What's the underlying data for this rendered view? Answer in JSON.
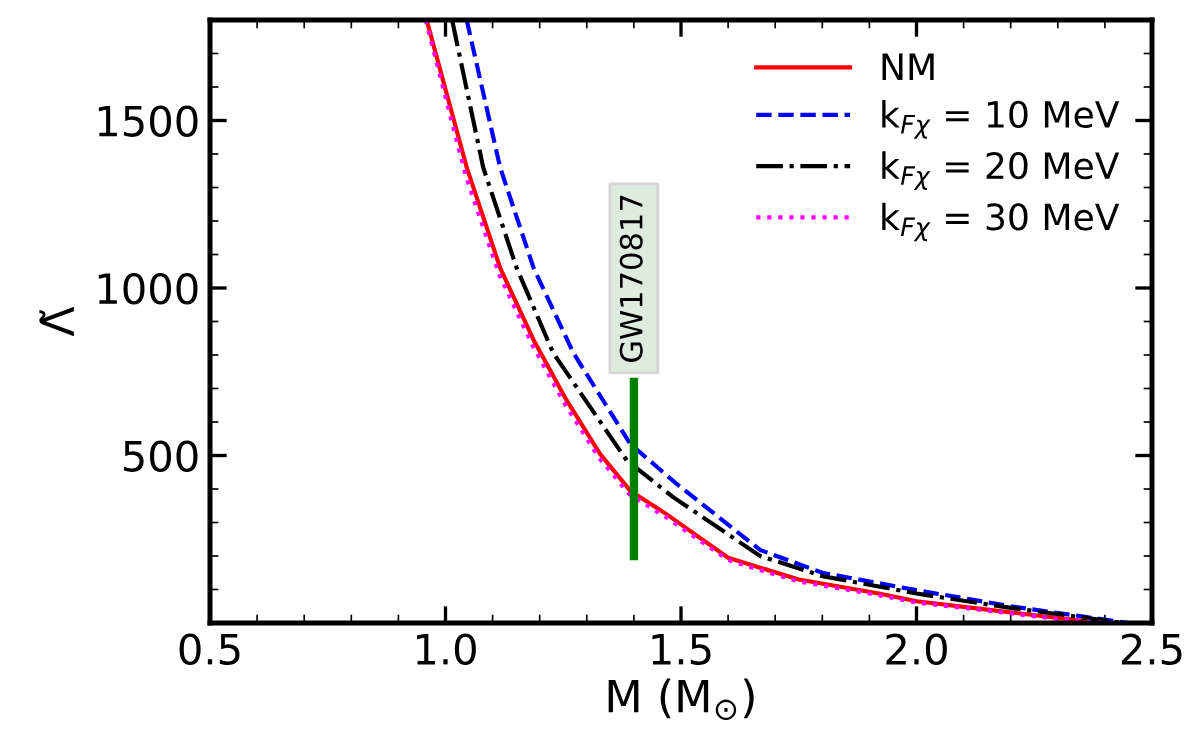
{
  "chart_data": {
    "type": "line",
    "xlabel": "M (M$_{⊙}$)",
    "ylabel": "Λ̃",
    "xlim": [
      0.5,
      2.5
    ],
    "ylim": [
      0,
      1800
    ],
    "xticks": [
      {
        "value": 0.5,
        "label": "0.5"
      },
      {
        "value": 1.0,
        "label": "1.0"
      },
      {
        "value": 1.5,
        "label": "1.5"
      },
      {
        "value": 2.0,
        "label": "2.0"
      },
      {
        "value": 2.5,
        "label": "2.5"
      }
    ],
    "yticks": [
      500,
      1000,
      1500
    ],
    "grid": false,
    "legend": "top right",
    "marker": "none",
    "series": [
      {
        "name": "NM",
        "color": "#ff0000",
        "line_style": "solid",
        "x": [
          0.96,
          1.045,
          1.116,
          1.187,
          1.257,
          1.328,
          1.392,
          1.469,
          1.6,
          1.668,
          1.75,
          1.92,
          2.0,
          2.15,
          2.3,
          2.36,
          2.42
        ],
        "values": [
          1800,
          1360,
          1060,
          845,
          665,
          505,
          395,
          325,
          195,
          165,
          130,
          88,
          65,
          40,
          15,
          6,
          0
        ]
      },
      {
        "name": "k$_{Fχ}$ = 10 MeV",
        "color": "#0000ff",
        "line_style": "dashed",
        "x": [
          1.045,
          1.116,
          1.187,
          1.272,
          1.392,
          1.491,
          1.668,
          1.8,
          2.0,
          2.2,
          2.35,
          2.45
        ],
        "values": [
          1800,
          1360,
          1060,
          805,
          535,
          415,
          218,
          150,
          98,
          50,
          20,
          0
        ]
      },
      {
        "name": "k$_{Fχ}$ = 20 MeV",
        "color": "#000000",
        "line_style": "dashdot",
        "x": [
          1.014,
          1.08,
          1.151,
          1.229,
          1.385,
          1.484,
          1.668,
          1.8,
          2.0,
          2.2,
          2.35,
          2.44
        ],
        "values": [
          1800,
          1360,
          1060,
          805,
          485,
          375,
          200,
          140,
          88,
          45,
          17,
          0
        ]
      },
      {
        "name": "k$_{Fχ}$ = 30 MeV",
        "color": "#ff00ff",
        "line_style": "dotted",
        "x": [
          0.958,
          1.043,
          1.114,
          1.185,
          1.255,
          1.326,
          1.39,
          1.467,
          1.6,
          1.668,
          1.75,
          1.92,
          2.0,
          2.15,
          2.3,
          2.36,
          2.42
        ],
        "values": [
          1800,
          1335,
          1040,
          828,
          650,
          493,
          385,
          317,
          188,
          158,
          124,
          83,
          61,
          37,
          12,
          4,
          0
        ]
      },
      {
        "color": "#008000",
        "line_style": "solid",
        "x": [
          1.4,
          1.4
        ],
        "values": [
          200,
          720
        ]
      }
    ],
    "annotations": [
      "GW170817"
    ]
  }
}
